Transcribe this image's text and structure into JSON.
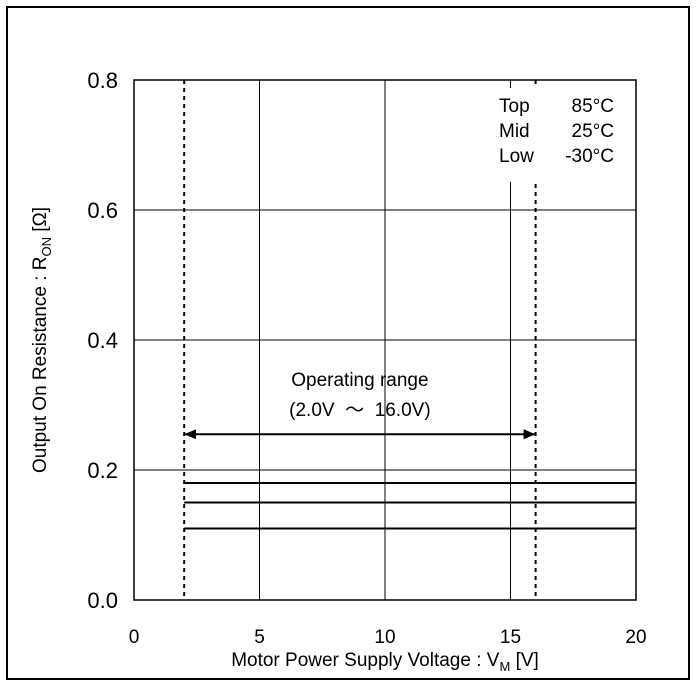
{
  "chart_data": {
    "type": "line",
    "xlabel": "Motor Power Supply Voltage : V",
    "xlabel_sub": "M",
    "xlabel_unit": " [V]",
    "ylabel": "Output On Resistance : R",
    "ylabel_sub": "ON",
    "ylabel_unit": " [Ω]",
    "xlim": [
      0,
      20
    ],
    "ylim": [
      0.0,
      0.8
    ],
    "xticks": [
      0,
      5,
      10,
      15,
      20
    ],
    "xtick_labels": [
      "0",
      "5",
      "10",
      "15",
      "20"
    ],
    "yticks": [
      0.0,
      0.2,
      0.4,
      0.6,
      0.8
    ],
    "ytick_labels": [
      "0.0",
      "0.2",
      "0.4",
      "0.6",
      "0.8"
    ],
    "grid": true,
    "series": [
      {
        "name": "Top 85°C",
        "x": [
          2.0,
          20.0
        ],
        "y": [
          0.18,
          0.18
        ]
      },
      {
        "name": "Mid 25°C",
        "x": [
          2.0,
          20.0
        ],
        "y": [
          0.15,
          0.15
        ]
      },
      {
        "name": "Low -30°C",
        "x": [
          2.0,
          20.0
        ],
        "y": [
          0.11,
          0.11
        ]
      }
    ],
    "legend": {
      "placement": "top-right",
      "entries": [
        {
          "label": "Top",
          "value": "85°C"
        },
        {
          "label": "Mid",
          "value": "25°C"
        },
        {
          "label": "Low",
          "value": "-30°C"
        }
      ]
    },
    "vlines": [
      2.0,
      16.0
    ],
    "annotation": {
      "line1": "Operating range",
      "line2": "(2.0V  ～  16.0V)",
      "x_from": 2.0,
      "x_to": 16.0,
      "y": 0.255
    }
  }
}
